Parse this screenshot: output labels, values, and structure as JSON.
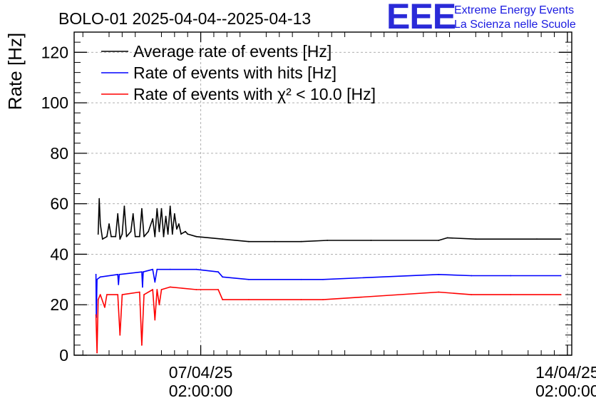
{
  "title": "BOLO-01 2025-04-04--2025-04-13",
  "logo": {
    "mark": "EEE",
    "line1": "Extreme Energy Events",
    "line2": "La Scienza nelle Scuole",
    "color": "#2020e0"
  },
  "chart_data": {
    "type": "line",
    "ylabel": "Rate [Hz]",
    "ylim": [
      0,
      128
    ],
    "yticks": [
      "0",
      "20",
      "40",
      "60",
      "80",
      "100",
      "120"
    ],
    "xlim": [
      "2025-04-04 16:00",
      "2025-04-14 04:00"
    ],
    "xticks": [
      {
        "date": "07/04/25",
        "time": "02:00:00",
        "x": "2025-04-07 02:00"
      },
      {
        "date": "14/04/25",
        "time": "02:00:00",
        "x": "2025-04-14 02:00"
      }
    ],
    "grid": true,
    "legend": "top-left",
    "series": [
      {
        "name": "Average rate of events [Hz]",
        "color": "#000000",
        "points": [
          [
            "2025-04-05 03:00",
            48
          ],
          [
            "2025-04-05 03:30",
            62
          ],
          [
            "2025-04-05 04:00",
            52
          ],
          [
            "2025-04-05 05:00",
            46
          ],
          [
            "2025-04-05 07:00",
            47
          ],
          [
            "2025-04-05 08:00",
            52
          ],
          [
            "2025-04-05 09:00",
            47
          ],
          [
            "2025-04-05 11:00",
            47
          ],
          [
            "2025-04-05 12:00",
            56
          ],
          [
            "2025-04-05 13:00",
            46
          ],
          [
            "2025-04-05 14:00",
            48
          ],
          [
            "2025-04-05 15:00",
            59
          ],
          [
            "2025-04-05 16:00",
            47
          ],
          [
            "2025-04-05 18:00",
            49
          ],
          [
            "2025-04-05 19:00",
            56
          ],
          [
            "2025-04-05 20:00",
            47
          ],
          [
            "2025-04-05 22:00",
            47
          ],
          [
            "2025-04-05 23:00",
            58
          ],
          [
            "2025-04-06 00:00",
            47
          ],
          [
            "2025-04-06 02:00",
            49
          ],
          [
            "2025-04-06 04:00",
            54
          ],
          [
            "2025-04-06 05:00",
            47
          ],
          [
            "2025-04-06 06:00",
            58
          ],
          [
            "2025-04-06 07:00",
            49
          ],
          [
            "2025-04-06 08:00",
            58
          ],
          [
            "2025-04-06 09:00",
            47
          ],
          [
            "2025-04-06 10:00",
            55
          ],
          [
            "2025-04-06 11:00",
            48
          ],
          [
            "2025-04-06 12:00",
            59
          ],
          [
            "2025-04-06 13:00",
            48
          ],
          [
            "2025-04-06 14:00",
            56
          ],
          [
            "2025-04-06 15:00",
            50
          ],
          [
            "2025-04-06 16:00",
            52
          ],
          [
            "2025-04-06 17:00",
            48
          ],
          [
            "2025-04-06 19:00",
            49
          ],
          [
            "2025-04-06 20:00",
            48
          ],
          [
            "2025-04-07 00:00",
            47
          ],
          [
            "2025-04-07 12:00",
            46
          ],
          [
            "2025-04-08 00:00",
            45
          ],
          [
            "2025-04-08 12:00",
            45
          ],
          [
            "2025-04-09 00:00",
            45
          ],
          [
            "2025-04-09 12:00",
            45.5
          ],
          [
            "2025-04-10 08:00",
            45.5
          ],
          [
            "2025-04-11 15:00",
            45.5
          ],
          [
            "2025-04-11 19:00",
            46.5
          ],
          [
            "2025-04-12 08:00",
            46
          ],
          [
            "2025-04-13 12:00",
            46
          ],
          [
            "2025-04-13 23:00",
            46
          ]
        ]
      },
      {
        "name": "Rate of events with hits [Hz]",
        "color": "#0000ff",
        "points": [
          [
            "2025-04-05 02:00",
            32
          ],
          [
            "2025-04-05 02:10",
            15
          ],
          [
            "2025-04-05 02:30",
            30
          ],
          [
            "2025-04-05 04:00",
            31
          ],
          [
            "2025-04-05 12:00",
            32
          ],
          [
            "2025-04-05 12:20",
            28
          ],
          [
            "2025-04-05 12:40",
            32
          ],
          [
            "2025-04-05 23:00",
            33
          ],
          [
            "2025-04-05 23:20",
            27
          ],
          [
            "2025-04-05 23:40",
            33
          ],
          [
            "2025-04-06 04:00",
            34
          ],
          [
            "2025-04-06 05:00",
            29
          ],
          [
            "2025-04-06 06:00",
            34
          ],
          [
            "2025-04-06 12:00",
            34
          ],
          [
            "2025-04-07 00:00",
            34
          ],
          [
            "2025-04-07 10:00",
            33
          ],
          [
            "2025-04-07 12:00",
            31
          ],
          [
            "2025-04-08 00:00",
            30
          ],
          [
            "2025-04-09 00:00",
            30
          ],
          [
            "2025-04-09 10:00",
            30
          ],
          [
            "2025-04-11 15:00",
            32
          ],
          [
            "2025-04-12 06:00",
            31.5
          ],
          [
            "2025-04-13 00:00",
            31.5
          ],
          [
            "2025-04-13 23:00",
            31.5
          ]
        ]
      },
      {
        "name": "Rate of events with χ² < 10.0 [Hz]",
        "color": "#ff0000",
        "points": [
          [
            "2025-04-05 02:00",
            16
          ],
          [
            "2025-04-05 02:30",
            1
          ],
          [
            "2025-04-05 03:00",
            22
          ],
          [
            "2025-04-05 04:00",
            24
          ],
          [
            "2025-04-05 06:00",
            19
          ],
          [
            "2025-04-05 07:00",
            24
          ],
          [
            "2025-04-05 12:00",
            24
          ],
          [
            "2025-04-05 13:00",
            8
          ],
          [
            "2025-04-05 14:00",
            24
          ],
          [
            "2025-04-05 22:00",
            25
          ],
          [
            "2025-04-05 23:00",
            4
          ],
          [
            "2025-04-06 00:00",
            24
          ],
          [
            "2025-04-06 04:00",
            26
          ],
          [
            "2025-04-06 05:00",
            14
          ],
          [
            "2025-04-06 06:00",
            26
          ],
          [
            "2025-04-06 07:00",
            20
          ],
          [
            "2025-04-06 08:00",
            26
          ],
          [
            "2025-04-06 12:00",
            27
          ],
          [
            "2025-04-07 00:00",
            26
          ],
          [
            "2025-04-07 10:00",
            26
          ],
          [
            "2025-04-07 12:00",
            22
          ],
          [
            "2025-04-08 00:00",
            22
          ],
          [
            "2025-04-09 00:00",
            22
          ],
          [
            "2025-04-09 10:00",
            22
          ],
          [
            "2025-04-11 15:00",
            25
          ],
          [
            "2025-04-12 06:00",
            24
          ],
          [
            "2025-04-13 00:00",
            24
          ],
          [
            "2025-04-13 23:00",
            24
          ]
        ]
      }
    ]
  }
}
